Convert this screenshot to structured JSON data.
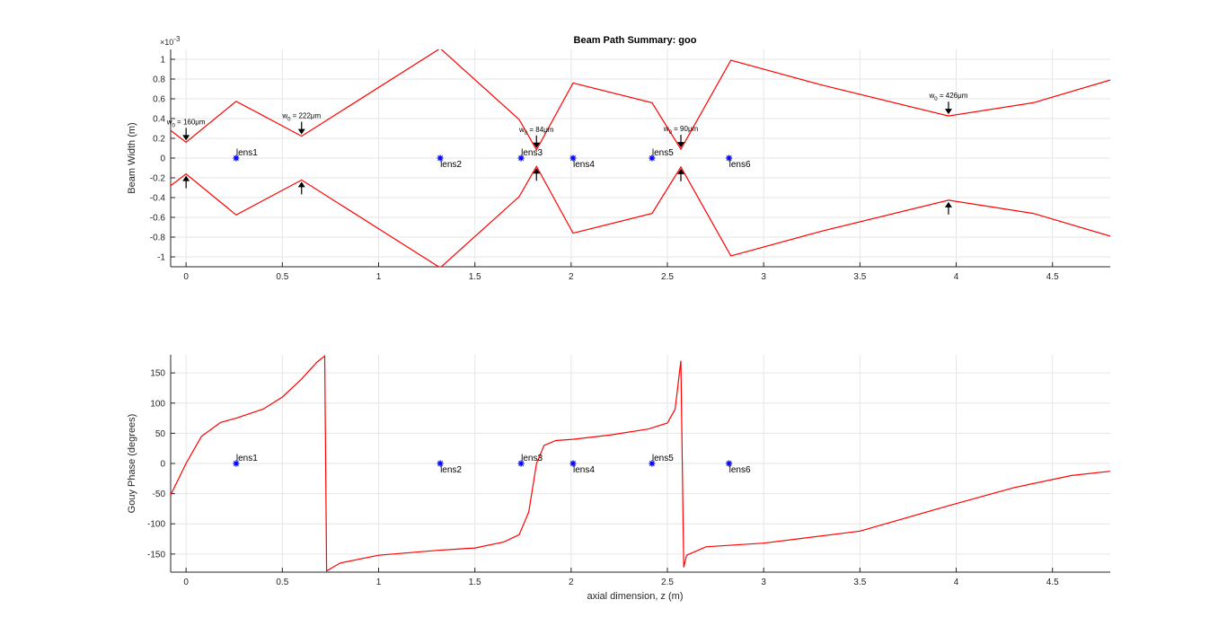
{
  "chart_data": [
    {
      "type": "line",
      "title": "Beam Path Summary: goo",
      "xlabel": "",
      "ylabel": "Beam Width (m)",
      "y_exponent_label": "×10",
      "y_exponent_power": "-3",
      "xlim": [
        -0.08,
        4.8
      ],
      "ylim": [
        -1.1,
        1.1
      ],
      "grid": true,
      "x_ticks": [
        0,
        0.5,
        1,
        1.5,
        2,
        2.5,
        3,
        3.5,
        4,
        4.5
      ],
      "x_tick_labels": [
        "0",
        "0.5",
        "1",
        "1.5",
        "2",
        "2.5",
        "3",
        "3.5",
        "4",
        "4.5"
      ],
      "y_ticks": [
        -1,
        -0.8,
        -0.6,
        -0.4,
        -0.2,
        0,
        0.2,
        0.4,
        0.6,
        0.8,
        1
      ],
      "y_tick_labels": [
        "-1",
        "-0.8",
        "-0.6",
        "-0.4",
        "-0.2",
        "0",
        "0.2",
        "0.4",
        "0.6",
        "0.8",
        "1"
      ],
      "line_color": "#ff0000",
      "series": [
        {
          "points": [
            [
              -0.08,
              0.28
            ],
            [
              0,
              0.16
            ],
            [
              0.26,
              0.575
            ],
            [
              0.6,
              0.222
            ],
            [
              1.32,
              1.11
            ],
            [
              1.73,
              0.39
            ],
            [
              1.82,
              0.084
            ],
            [
              2.01,
              0.76
            ],
            [
              2.42,
              0.56
            ],
            [
              2.57,
              0.09
            ],
            [
              2.83,
              0.99
            ],
            [
              3.3,
              0.74
            ],
            [
              3.96,
              0.426
            ],
            [
              4.4,
              0.56
            ],
            [
              4.8,
              0.79
            ]
          ]
        },
        {
          "points": [
            [
              -0.08,
              -0.28
            ],
            [
              0,
              -0.16
            ],
            [
              0.26,
              -0.575
            ],
            [
              0.6,
              -0.222
            ],
            [
              1.32,
              -1.11
            ],
            [
              1.73,
              -0.39
            ],
            [
              1.82,
              -0.084
            ],
            [
              2.01,
              -0.76
            ],
            [
              2.42,
              -0.56
            ],
            [
              2.57,
              -0.09
            ],
            [
              2.83,
              -0.99
            ],
            [
              3.3,
              -0.74
            ],
            [
              3.96,
              -0.426
            ],
            [
              4.4,
              -0.56
            ],
            [
              4.8,
              -0.79
            ]
          ]
        }
      ],
      "waist_annotations": [
        {
          "z": 0,
          "w": 0.16,
          "text": "w0 = 160μm"
        },
        {
          "z": 0.6,
          "w": 0.222,
          "text": "w0 = 222μm"
        },
        {
          "z": 1.82,
          "w": 0.084,
          "text": "w0 = 84μm"
        },
        {
          "z": 2.57,
          "w": 0.09,
          "text": "w0 = 90μm"
        },
        {
          "z": 3.96,
          "w": 0.426,
          "text": "w0 = 426μm"
        }
      ],
      "lenses": [
        {
          "z": 0.26,
          "label": "lens1",
          "label_pos": "above"
        },
        {
          "z": 1.32,
          "label": "lens2",
          "label_pos": "below"
        },
        {
          "z": 1.74,
          "label": "lens3",
          "label_pos": "above"
        },
        {
          "z": 2.01,
          "label": "lens4",
          "label_pos": "below"
        },
        {
          "z": 2.42,
          "label": "lens5",
          "label_pos": "above"
        },
        {
          "z": 2.82,
          "label": "lens6",
          "label_pos": "below"
        }
      ],
      "lens_color": "#0000ff"
    },
    {
      "type": "line",
      "title": "",
      "xlabel": "axial dimension, z (m)",
      "ylabel": "Gouy Phase (degrees)",
      "xlim": [
        -0.08,
        4.8
      ],
      "ylim": [
        -180,
        180
      ],
      "grid": true,
      "x_ticks": [
        0,
        0.5,
        1,
        1.5,
        2,
        2.5,
        3,
        3.5,
        4,
        4.5
      ],
      "x_tick_labels": [
        "0",
        "0.5",
        "1",
        "1.5",
        "2",
        "2.5",
        "3",
        "3.5",
        "4",
        "4.5"
      ],
      "y_ticks": [
        -150,
        -100,
        -50,
        0,
        50,
        100,
        150
      ],
      "y_tick_labels": [
        "-150",
        "-100",
        "-50",
        "0",
        "50",
        "100",
        "150"
      ],
      "line_color": "#ff0000",
      "series": [
        {
          "points": [
            [
              -0.08,
              -52
            ],
            [
              0,
              0
            ],
            [
              0.08,
              45
            ],
            [
              0.18,
              68
            ],
            [
              0.26,
              75
            ],
            [
              0.4,
              90
            ],
            [
              0.5,
              110
            ],
            [
              0.6,
              140
            ],
            [
              0.68,
              168
            ],
            [
              0.72,
              178
            ],
            [
              0.73,
              -178
            ],
            [
              0.8,
              -165
            ],
            [
              1.0,
              -152
            ],
            [
              1.3,
              -144
            ],
            [
              1.5,
              -140
            ],
            [
              1.65,
              -130
            ],
            [
              1.73,
              -118
            ],
            [
              1.78,
              -80
            ],
            [
              1.82,
              0
            ],
            [
              1.86,
              30
            ],
            [
              1.92,
              38
            ],
            [
              2.01,
              40
            ],
            [
              2.2,
              47
            ],
            [
              2.4,
              57
            ],
            [
              2.5,
              67
            ],
            [
              2.54,
              90
            ],
            [
              2.57,
              170
            ],
            [
              2.585,
              -172
            ],
            [
              2.6,
              -152
            ],
            [
              2.7,
              -138
            ],
            [
              3.0,
              -132
            ],
            [
              3.5,
              -112
            ],
            [
              3.96,
              -70
            ],
            [
              4.3,
              -40
            ],
            [
              4.6,
              -20
            ],
            [
              4.8,
              -13
            ]
          ]
        }
      ],
      "lenses": [
        {
          "z": 0.26,
          "label": "lens1",
          "label_pos": "above"
        },
        {
          "z": 1.32,
          "label": "lens2",
          "label_pos": "below"
        },
        {
          "z": 1.74,
          "label": "lens3",
          "label_pos": "above"
        },
        {
          "z": 2.01,
          "label": "lens4",
          "label_pos": "below"
        },
        {
          "z": 2.42,
          "label": "lens5",
          "label_pos": "above"
        },
        {
          "z": 2.82,
          "label": "lens6",
          "label_pos": "below"
        }
      ],
      "lens_color": "#0000ff"
    }
  ]
}
